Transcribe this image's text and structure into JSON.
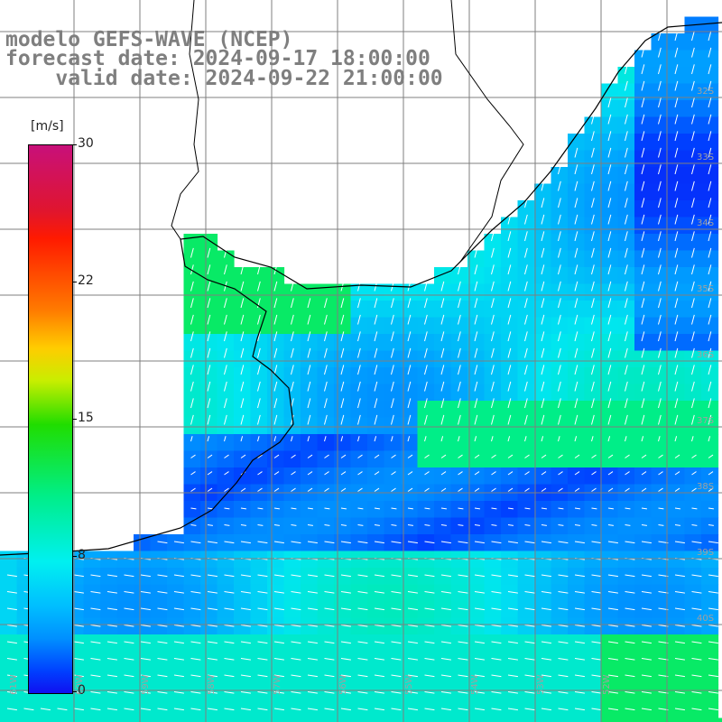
{
  "header": {
    "model": "modelo GEFS-WAVE (NCEP)",
    "forecast": "forecast date: 2024-09-17 18:00:00",
    "valid": "    valid date: 2024-09-22 21:00:00"
  },
  "colorbar": {
    "unit": "[m/s]",
    "ticks": [
      "30",
      "22",
      "15",
      "8",
      "0"
    ],
    "tick_values": [
      30,
      22,
      15,
      8,
      0
    ]
  },
  "axes": {
    "lat_labels": [
      "32S",
      "33S",
      "34S",
      "35S",
      "36S",
      "37S",
      "38S",
      "39S",
      "40S"
    ],
    "lon_labels": [
      "61W",
      "60W",
      "59W",
      "58W",
      "57W",
      "56W",
      "55W",
      "54W",
      "53W",
      "52W"
    ]
  },
  "colors": {
    "land": "#ffffff",
    "grid": "#7f7f7f",
    "coast": "#000000",
    "header_text": "#7f7f7f",
    "arrows": "#ffffff"
  }
}
